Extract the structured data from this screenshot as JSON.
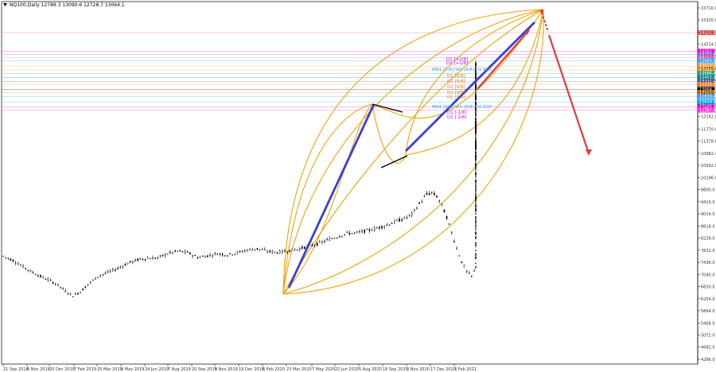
{
  "window": {
    "title": "NQ100,Daily  12789.3 13090.6 12728.7 13064.1"
  },
  "colors": {
    "background": "#ffffff",
    "candle": "#000000",
    "arc": "#f0a30a",
    "trend": "#3b3fd6",
    "forecast": "#e23b3b",
    "grid_axis": "#000000"
  },
  "chart_data": {
    "type": "candlestick",
    "symbol": "NQ100",
    "timeframe": "Daily",
    "ohlc_header": {
      "open": 12789.3,
      "high": 13090.6,
      "low": 12728.7,
      "close": 13064.1
    },
    "ylim": [
      4286.0,
      15710.0
    ],
    "y_ticks": [
      "15710.0",
      "15320.0",
      "14926.0",
      "14534.5",
      "14142.0",
      "13750.0",
      "13358.4",
      "12966.4",
      "12574.0",
      "12182.0",
      "11770.0",
      "11378.6",
      "10982.4",
      "10592.0",
      "10196.0",
      "9800.0",
      "9410.0",
      "9014.0",
      "8618.0",
      "8228.0",
      "7832.0",
      "7436.0",
      "7040.0",
      "6650.0",
      "6254.0",
      "5864.0",
      "5468.0",
      "5072.0",
      "4682.0",
      "4286.0"
    ],
    "x_ticks": [
      "21 Sep 2018",
      "6 Nov 2018",
      "20 Dec 2018",
      "7 Feb 2019",
      "25 Mar 2019",
      "9 May 2019",
      "24 Jun 2019",
      "7 Aug 2019",
      "20 Sep 2019",
      "5 Nov 2019",
      "19 Dec 2019",
      "6 Feb 2020",
      "23 Mar 2020",
      "7 May 2020",
      "22 Jun 2020",
      "5 Aug 2020",
      "18 Sep 2020",
      "3 Nov 2020",
      "17 Dec 2020",
      "3 Feb 2021"
    ],
    "price_path": [
      [
        0,
        7640
      ],
      [
        4,
        7500
      ],
      [
        8,
        7300
      ],
      [
        11,
        7150
      ],
      [
        15,
        6980
      ],
      [
        18,
        6880
      ],
      [
        22,
        6700
      ],
      [
        25,
        6500
      ],
      [
        28,
        6350
      ],
      [
        31,
        6480
      ],
      [
        34,
        6720
      ],
      [
        38,
        6980
      ],
      [
        42,
        7110
      ],
      [
        46,
        7240
      ],
      [
        50,
        7410
      ],
      [
        54,
        7520
      ],
      [
        58,
        7570
      ],
      [
        62,
        7580
      ],
      [
        66,
        7720
      ],
      [
        70,
        7800
      ],
      [
        74,
        7760
      ],
      [
        78,
        7600
      ],
      [
        82,
        7650
      ],
      [
        86,
        7720
      ],
      [
        90,
        7680
      ],
      [
        94,
        7750
      ],
      [
        98,
        7840
      ],
      [
        102,
        7880
      ],
      [
        106,
        7800
      ],
      [
        110,
        7760
      ],
      [
        114,
        7810
      ],
      [
        118,
        7860
      ],
      [
        122,
        7950
      ],
      [
        126,
        8030
      ],
      [
        130,
        8160
      ],
      [
        134,
        8270
      ],
      [
        138,
        8380
      ],
      [
        142,
        8400
      ],
      [
        146,
        8470
      ],
      [
        150,
        8550
      ],
      [
        154,
        8650
      ],
      [
        158,
        8780
      ],
      [
        162,
        8900
      ],
      [
        164,
        9000
      ],
      [
        166,
        9230
      ],
      [
        168,
        9450
      ],
      [
        170,
        9650
      ],
      [
        172,
        9700
      ],
      [
        174,
        9580
      ],
      [
        176,
        9300
      ],
      [
        178,
        8900
      ],
      [
        180,
        8400
      ],
      [
        182,
        7900
      ],
      [
        184,
        7450
      ],
      [
        186,
        7150
      ],
      [
        188,
        6980
      ],
      [
        190,
        7300
      ],
      [
        192,
        7550
      ],
      [
        194,
        7600
      ],
      [
        196,
        7700
      ],
      [
        198,
        7980
      ],
      [
        200,
        8200
      ],
      [
        202,
        8350
      ],
      [
        204,
        8520
      ],
      [
        206,
        8650
      ],
      [
        208,
        8800
      ],
      [
        210,
        8950
      ],
      [
        212,
        9150
      ],
      [
        214,
        9350
      ],
      [
        216,
        9550
      ],
      [
        218,
        9720
      ],
      [
        220,
        9850
      ],
      [
        222,
        9990
      ],
      [
        224,
        10120
      ],
      [
        226,
        10250
      ],
      [
        228,
        10380
      ],
      [
        230,
        10600
      ],
      [
        232,
        10900
      ],
      [
        234,
        11250
      ],
      [
        236,
        11600
      ],
      [
        238,
        11950
      ],
      [
        240,
        12300
      ],
      [
        242,
        12600
      ],
      [
        244,
        12750
      ],
      [
        246,
        12420
      ],
      [
        248,
        11650
      ],
      [
        250,
        11200
      ],
      [
        252,
        10950
      ],
      [
        254,
        10800
      ],
      [
        256,
        11050
      ],
      [
        258,
        11400
      ],
      [
        260,
        11300
      ],
      [
        262,
        11000
      ],
      [
        264,
        11150
      ],
      [
        266,
        11500
      ],
      [
        268,
        11850
      ],
      [
        270,
        11650
      ],
      [
        272,
        11450
      ],
      [
        274,
        11700
      ],
      [
        276,
        12000
      ],
      [
        278,
        11860
      ],
      [
        280,
        11700
      ],
      [
        282,
        11950
      ],
      [
        284,
        12250
      ],
      [
        286,
        12350
      ],
      [
        288,
        12400
      ],
      [
        290,
        12450
      ],
      [
        292,
        12550
      ],
      [
        294,
        12650
      ],
      [
        296,
        12780
      ],
      [
        298,
        12900
      ],
      [
        300,
        13000
      ],
      [
        302,
        13150
      ],
      [
        304,
        13250
      ],
      [
        306,
        13420
      ],
      [
        308,
        13350
      ],
      [
        310,
        13600
      ],
      [
        312,
        13700
      ],
      [
        314,
        13550
      ],
      [
        316,
        13800
      ],
      [
        318,
        13900
      ],
      [
        320,
        13650
      ],
      [
        322,
        13300
      ],
      [
        324,
        12900
      ],
      [
        326,
        12780
      ],
      [
        328,
        13060
      ]
    ],
    "price_levels": [
      {
        "value": "14905.0",
        "color": "#ff4d4d"
      },
      {
        "value": "14302.3",
        "color": "#ff00c8"
      },
      {
        "value": "14202.4",
        "color": "#8a55ff"
      },
      {
        "value": "14101.5",
        "color": "#ff6ac1"
      },
      {
        "value": "13990.6",
        "color": "#3aa0e8"
      },
      {
        "value": "13817.0",
        "color": "#ff9933"
      },
      {
        "value": "13694.2",
        "color": "#ffa31a"
      },
      {
        "value": "13586.4",
        "color": "#2b9a7e"
      },
      {
        "value": "13452.8",
        "color": "#008080"
      },
      {
        "value": "13326.4",
        "color": "#5566cc"
      },
      {
        "value": "13230.0",
        "color": "#e07a20"
      },
      {
        "value": "13064.1",
        "color": "#000000"
      },
      {
        "value": "12968.6",
        "color": "#cc6600"
      },
      {
        "value": "12830.4",
        "color": "#3aa0e8"
      },
      {
        "value": "12654.3",
        "color": "#00aaff"
      },
      {
        "value": "12487.6",
        "color": "#ff00cc"
      },
      {
        "value": "12387.4",
        "color": "#ff33cc"
      }
    ],
    "fib_labels": [
      {
        "text": "D1 [+2/8]",
        "color": "#cc00cc"
      },
      {
        "text": "D1 [+1/8]",
        "color": "#cc00cc"
      },
      {
        "text": "MN1 [7/8] W1 [8/8] D1 RES",
        "color": "#3aa0e8"
      },
      {
        "text": "D1 [6/8]",
        "color": "#e07a20"
      },
      {
        "text": "D1 [5/8]",
        "color": "#e07a20"
      },
      {
        "text": "D1 [4/8]",
        "color": "#e07a20"
      },
      {
        "text": "D1 [3/8]",
        "color": "#e07a20"
      },
      {
        "text": "D1 [2/8]",
        "color": "#e07a20"
      },
      {
        "text": "MN1 [6/8] W1 [6/8] D1 SUP",
        "color": "#3aa0e8"
      },
      {
        "text": "D1 [-1/8]",
        "color": "#cc00cc"
      },
      {
        "text": "D1 [-2/8]",
        "color": "#cc00cc"
      }
    ]
  }
}
